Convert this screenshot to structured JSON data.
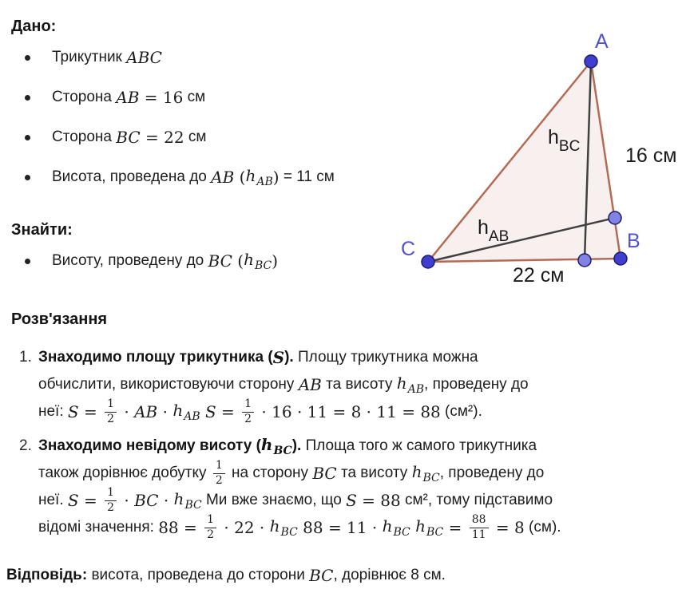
{
  "given": {
    "heading": "Дано:",
    "items": [
      [
        {
          "k": "t",
          "t": "Трикутник "
        },
        {
          "k": "m",
          "t": "ABC"
        }
      ],
      [
        {
          "k": "t",
          "t": "Сторона "
        },
        {
          "k": "m",
          "t": "AB"
        },
        {
          "k": "mr",
          "t": " = 16"
        },
        {
          "k": "t",
          "t": " см"
        }
      ],
      [
        {
          "k": "t",
          "t": "Сторона "
        },
        {
          "k": "m",
          "t": "BC"
        },
        {
          "k": "mr",
          "t": " = 22"
        },
        {
          "k": "t",
          "t": " см"
        }
      ],
      [
        {
          "k": "t",
          "t": "Висота, проведена до "
        },
        {
          "k": "m",
          "t": "AB"
        },
        {
          "k": "mr",
          "t": " ("
        },
        {
          "k": "v",
          "t": "h",
          "sub": "AB"
        },
        {
          "k": "mr",
          "t": ")"
        },
        {
          "k": "t",
          "t": " = 11 см"
        }
      ]
    ]
  },
  "find": {
    "heading": "Знайти:",
    "items": [
      [
        {
          "k": "t",
          "t": "Висоту, проведену до "
        },
        {
          "k": "m",
          "t": "BC"
        },
        {
          "k": "mr",
          "t": " ("
        },
        {
          "k": "v",
          "t": "h",
          "sub": "BC"
        },
        {
          "k": "mr",
          "t": ")"
        }
      ]
    ]
  },
  "solution": {
    "heading": "Розв'язання",
    "steps": [
      {
        "number": "1.",
        "lines": [
          [
            {
              "k": "b",
              "t": "Знаходимо площу трикутника ("
            },
            {
              "k": "bm",
              "t": "S"
            },
            {
              "k": "b",
              "t": ")."
            },
            {
              "k": "t",
              "t": " Площу трикутника можна"
            }
          ],
          [
            {
              "k": "t",
              "t": "обчислити, використовуючи сторону "
            },
            {
              "k": "m",
              "t": "AB"
            },
            {
              "k": "t",
              "t": " та висоту "
            },
            {
              "k": "v",
              "t": "h",
              "sub": "AB"
            },
            {
              "k": "t",
              "t": ", проведену до"
            }
          ],
          [
            {
              "k": "t",
              "t": "неї: "
            },
            {
              "k": "m",
              "t": "S"
            },
            {
              "k": "mr",
              "t": " = "
            },
            {
              "k": "f",
              "num": "1",
              "den": "2"
            },
            {
              "k": "mr",
              "t": " · "
            },
            {
              "k": "m",
              "t": "AB"
            },
            {
              "k": "mr",
              "t": " · "
            },
            {
              "k": "v",
              "t": "h",
              "sub": "AB"
            },
            {
              "k": "m",
              "t": " S"
            },
            {
              "k": "mr",
              "t": " = "
            },
            {
              "k": "f",
              "num": "1",
              "den": "2"
            },
            {
              "k": "mr",
              "t": " · 16 · 11 = 8 · 11 = 88"
            },
            {
              "k": "t",
              "t": " (см²)."
            }
          ]
        ]
      },
      {
        "number": "2.",
        "lines": [
          [
            {
              "k": "b",
              "t": "Знаходимо невідому висоту ("
            },
            {
              "k": "bv",
              "t": "h",
              "sub": "BC"
            },
            {
              "k": "b",
              "t": ")."
            },
            {
              "k": "t",
              "t": " Площа того ж самого трикутника"
            }
          ],
          [
            {
              "k": "t",
              "t": "також дорівнює добутку "
            },
            {
              "k": "f",
              "num": "1",
              "den": "2"
            },
            {
              "k": "t",
              "t": " на сторону "
            },
            {
              "k": "m",
              "t": "BC"
            },
            {
              "k": "t",
              "t": " та висоту "
            },
            {
              "k": "v",
              "t": "h",
              "sub": "BC"
            },
            {
              "k": "t",
              "t": ", проведену до"
            }
          ],
          [
            {
              "k": "t",
              "t": "неї. "
            },
            {
              "k": "m",
              "t": "S"
            },
            {
              "k": "mr",
              "t": " = "
            },
            {
              "k": "f",
              "num": "1",
              "den": "2"
            },
            {
              "k": "mr",
              "t": " · "
            },
            {
              "k": "m",
              "t": "BC"
            },
            {
              "k": "mr",
              "t": " · "
            },
            {
              "k": "v",
              "t": "h",
              "sub": "BC"
            },
            {
              "k": "t",
              "t": " Ми вже знаємо, що "
            },
            {
              "k": "m",
              "t": "S"
            },
            {
              "k": "mr",
              "t": " = 88"
            },
            {
              "k": "t",
              "t": " см², тому підставимо"
            }
          ],
          [
            {
              "k": "t",
              "t": "відомі значення: "
            },
            {
              "k": "mr",
              "t": "88 = "
            },
            {
              "k": "f",
              "num": "1",
              "den": "2"
            },
            {
              "k": "mr",
              "t": " · 22 · "
            },
            {
              "k": "v",
              "t": "h",
              "sub": "BC"
            },
            {
              "k": "mr",
              "t": " 88 = 11 · "
            },
            {
              "k": "v",
              "t": "h",
              "sub": "BC"
            },
            {
              "k": "v",
              "t": " h",
              "sub": "BC"
            },
            {
              "k": "mr",
              "t": " = "
            },
            {
              "k": "f",
              "num": "88",
              "den": "11"
            },
            {
              "k": "mr",
              "t": " = 8"
            },
            {
              "k": "t",
              "t": " (см)."
            }
          ]
        ]
      }
    ]
  },
  "answer": [
    {
      "k": "b",
      "t": "Відповідь:"
    },
    {
      "k": "t",
      "t": " висота, проведена до сторони "
    },
    {
      "k": "m",
      "t": "BC"
    },
    {
      "k": "t",
      "t": ", дорівнює 8 см."
    }
  ],
  "diagram": {
    "vertex_labels": {
      "a": "A",
      "b": "B",
      "c": "C"
    },
    "height_labels": {
      "hbc_base": "h",
      "hbc_sub": "BC",
      "hab_base": "h",
      "hab_sub": "AB"
    },
    "side_labels": {
      "ab": "16 см",
      "cb": "22 см"
    },
    "colors": {
      "edge": "#b56a55",
      "fill": "#f7f0ef",
      "height_line": "#404040",
      "vertex_dot": "#3f3fcf",
      "foot_dot": "#8282e2",
      "dot_stroke": "#1c1c6e",
      "vertex_label": "#5151d1",
      "text": "#1a1a1a"
    }
  }
}
